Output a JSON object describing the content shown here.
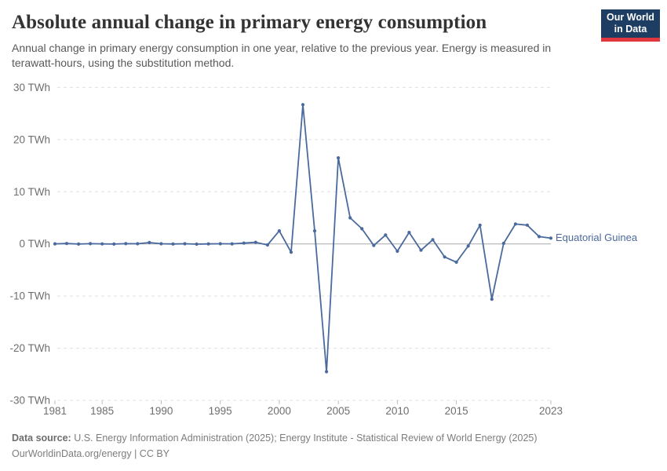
{
  "header": {
    "title": "Absolute annual change in primary energy consumption",
    "subtitle": "Annual change in primary energy consumption in one year, relative to the previous year. Energy is measured in terawatt-hours, using the substitution method.",
    "logo": {
      "line1": "Our World",
      "line2": "in Data"
    }
  },
  "chart_data": {
    "type": "line",
    "title": "Absolute annual change in primary energy consumption",
    "unit": "TWh",
    "x": [
      1981,
      1982,
      1983,
      1984,
      1985,
      1986,
      1987,
      1988,
      1989,
      1990,
      1991,
      1992,
      1993,
      1994,
      1995,
      1996,
      1997,
      1998,
      1999,
      2000,
      2001,
      2002,
      2003,
      2004,
      2005,
      2006,
      2007,
      2008,
      2009,
      2010,
      2011,
      2012,
      2013,
      2014,
      2015,
      2016,
      2017,
      2018,
      2019,
      2020,
      2021,
      2022,
      2023
    ],
    "series": [
      {
        "name": "Equatorial Guinea",
        "color": "#4a6a9e",
        "values": [
          0.02,
          0.08,
          -0.03,
          0.05,
          0,
          -0.03,
          0.05,
          0.03,
          0.25,
          0.03,
          -0.02,
          0.03,
          -0.05,
          0,
          0.03,
          0.02,
          0.15,
          0.3,
          -0.2,
          2.5,
          -1.6,
          26.7,
          2.5,
          -24.5,
          16.5,
          5.0,
          2.9,
          -0.3,
          1.7,
          -1.4,
          2.2,
          -1.2,
          0.8,
          -2.5,
          -3.5,
          -0.4,
          3.6,
          -10.6,
          0.1,
          3.8,
          3.6,
          1.4,
          1.1
        ]
      }
    ],
    "xlim": [
      1981,
      2023
    ],
    "ylim": [
      -30,
      30
    ],
    "x_ticks": [
      1981,
      1985,
      1990,
      1995,
      2000,
      2005,
      2010,
      2015,
      2023
    ],
    "y_ticks": [
      {
        "v": 30,
        "label": "30 TWh"
      },
      {
        "v": 20,
        "label": "20 TWh"
      },
      {
        "v": 10,
        "label": "10 TWh"
      },
      {
        "v": 0,
        "label": "0 TWh"
      },
      {
        "v": -10,
        "label": "-10 TWh"
      },
      {
        "v": -20,
        "label": "-20 TWh"
      },
      {
        "v": -30,
        "label": "-30 TWh"
      }
    ],
    "grid": "horizontal-dashed",
    "legend_position": "right-of-line",
    "colors": {
      "gridline": "#e0e0e0",
      "zero_line": "#a8a8a8",
      "tick_text": "#6e6e6e",
      "tick_mark": "#bdbdbd"
    }
  },
  "footer": {
    "datasource_label": "Data source:",
    "datasource_text": " U.S. Energy Information Administration (2025); Energy Institute - Statistical Review of World Energy (2025)",
    "license_line": "OurWorldinData.org/energy | CC BY"
  }
}
